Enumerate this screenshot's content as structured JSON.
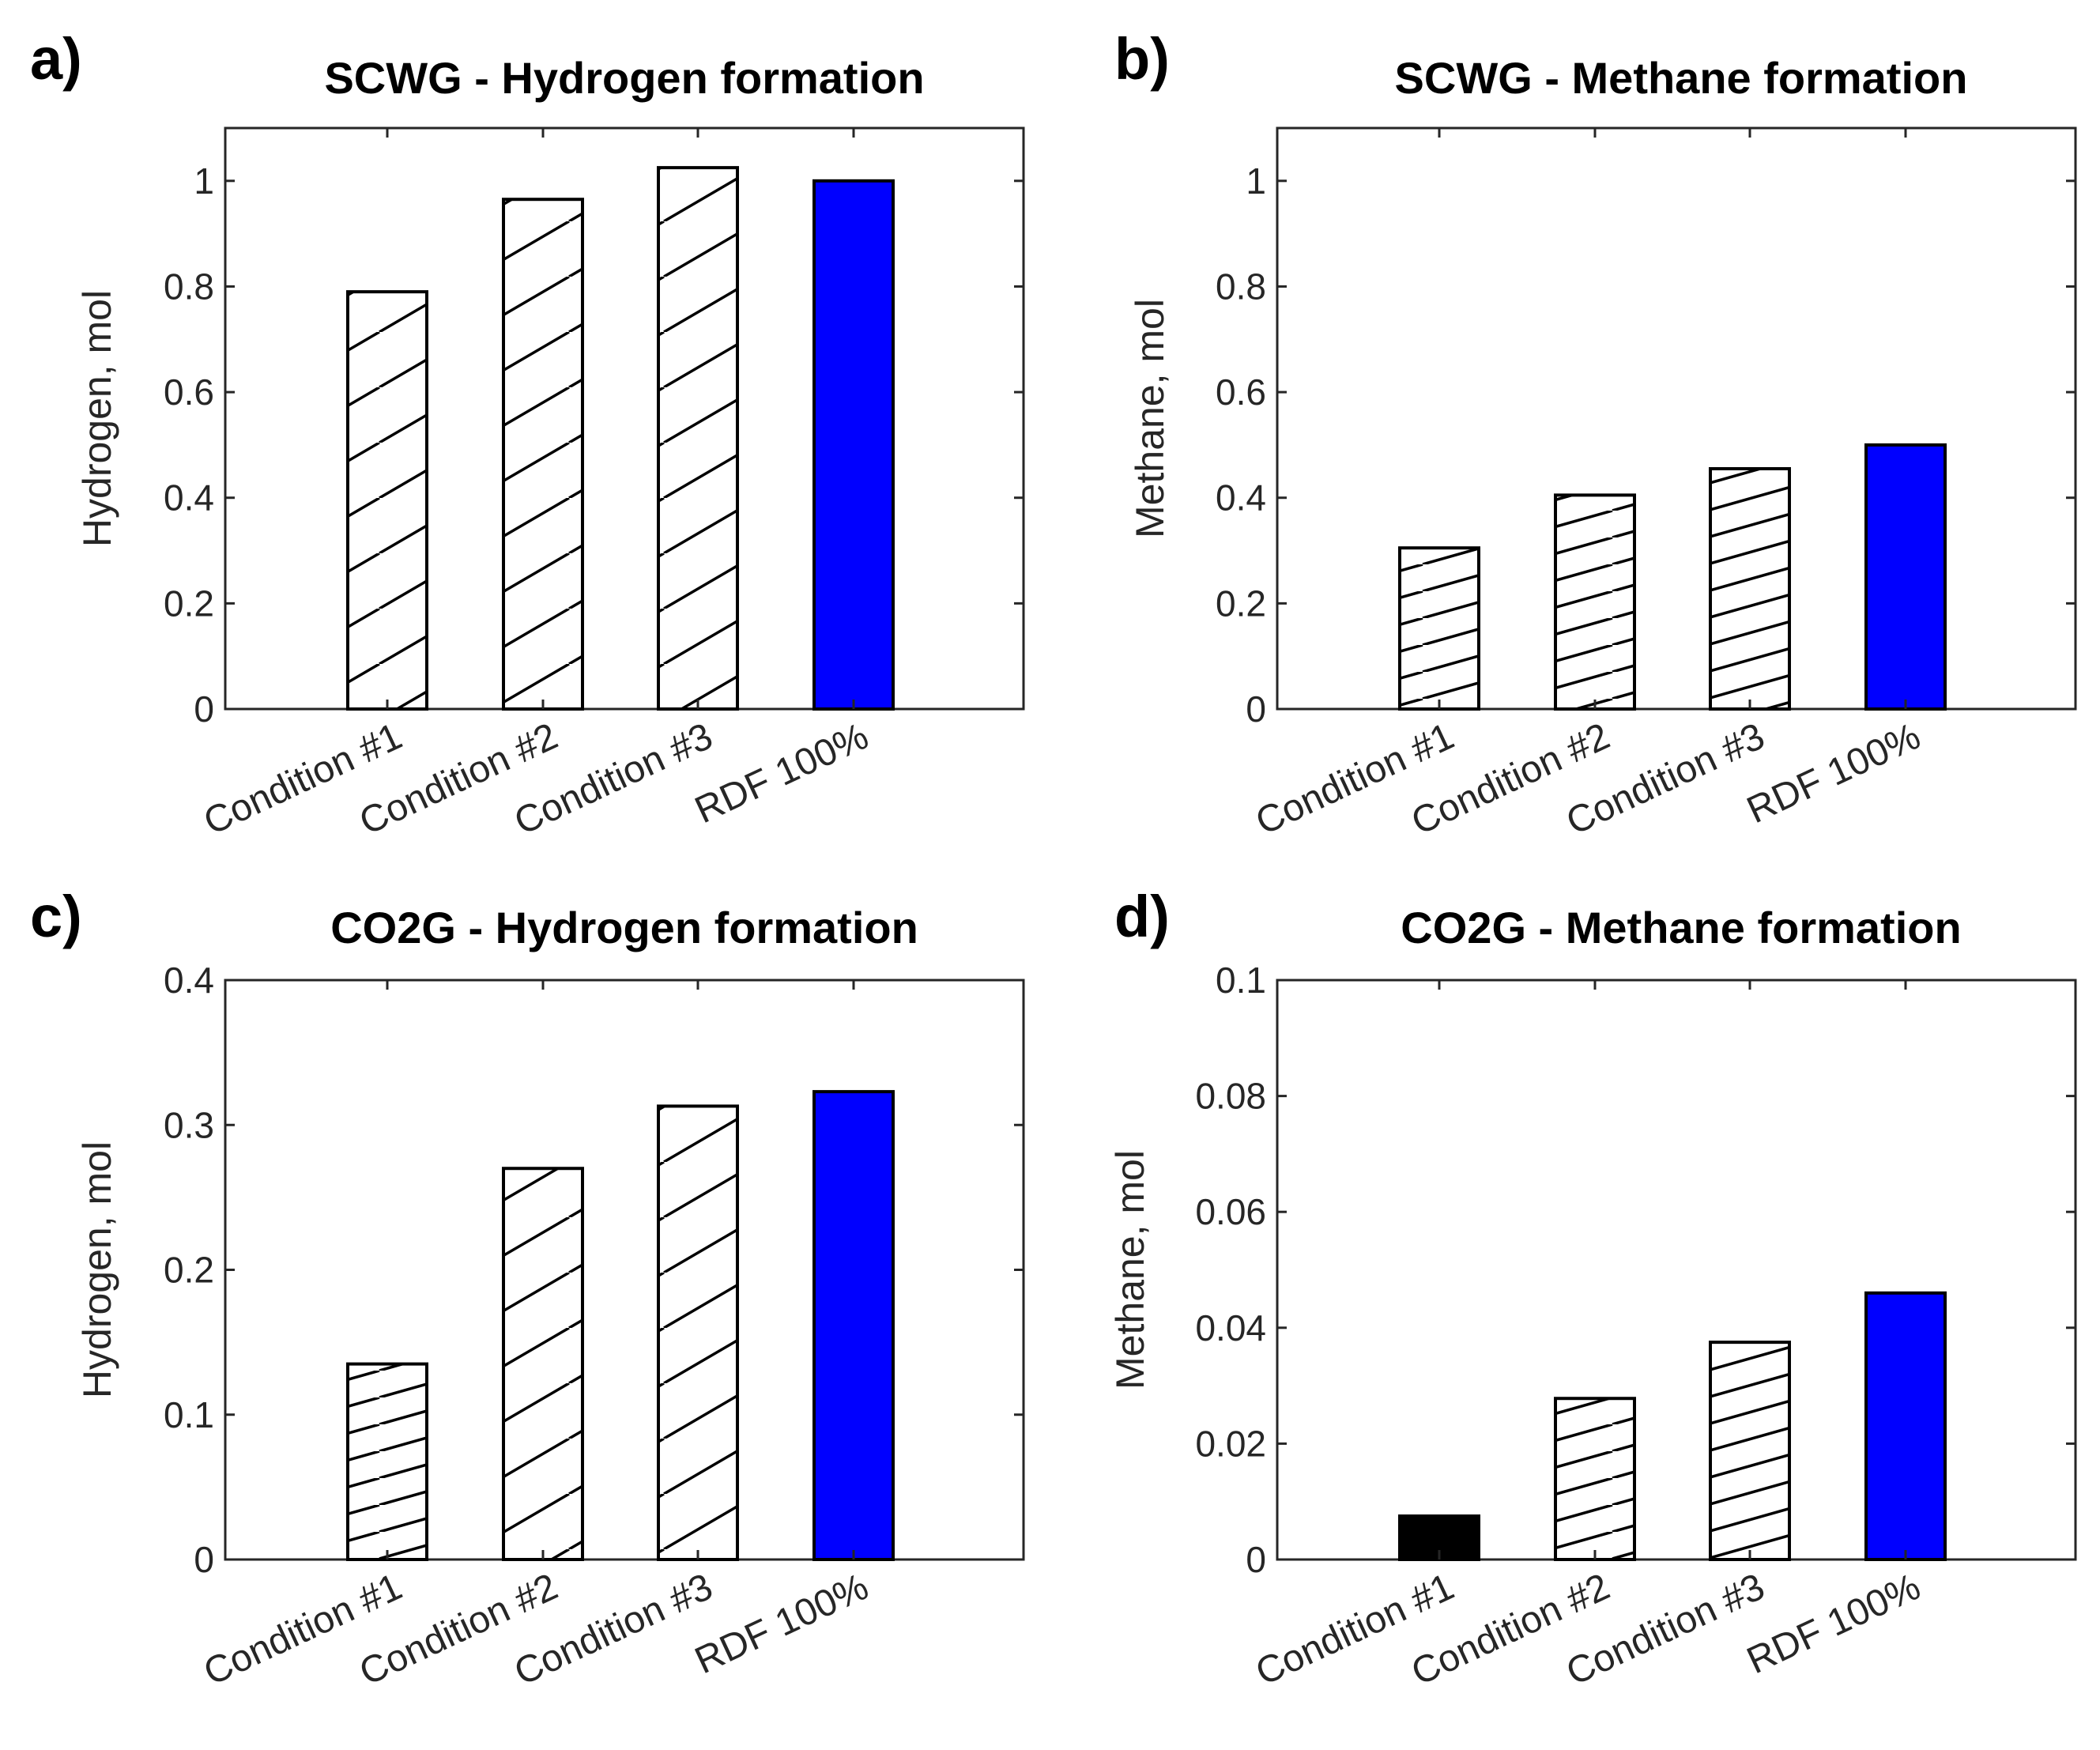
{
  "chart_data": [
    {
      "panel": "a)",
      "type": "bar",
      "title": "SCWG - Hydrogen formation",
      "ylabel": "Hydrogen, mol",
      "xlabel": "",
      "ylim": [
        0,
        1.1
      ],
      "yticks": [
        "0",
        "0.2",
        "0.4",
        "0.6",
        "0.8",
        "1"
      ],
      "ytick_values": [
        0,
        0.2,
        0.4,
        0.6,
        0.8,
        1.0
      ],
      "categories": [
        "Condition #1",
        "Condition #2",
        "Condition #3",
        "RDF 100%"
      ],
      "values": [
        0.79,
        0.965,
        1.025,
        1.0
      ],
      "fills": [
        "hatch-steep",
        "hatch-steep",
        "hatch-steep",
        "#0000ff"
      ],
      "grid": false
    },
    {
      "panel": "b)",
      "type": "bar",
      "title": "SCWG - Methane formation",
      "ylabel": "Methane, mol",
      "xlabel": "",
      "ylim": [
        0,
        1.1
      ],
      "yticks": [
        "0",
        "0.2",
        "0.4",
        "0.6",
        "0.8",
        "1"
      ],
      "ytick_values": [
        0,
        0.2,
        0.4,
        0.6,
        0.8,
        1.0
      ],
      "categories": [
        "Condition #1",
        "Condition #2",
        "Condition #3",
        "RDF 100%"
      ],
      "values": [
        0.305,
        0.405,
        0.455,
        0.5
      ],
      "fills": [
        "hatch-shallow",
        "hatch-shallow",
        "hatch-shallow",
        "#0000ff"
      ],
      "grid": false
    },
    {
      "panel": "c)",
      "type": "bar",
      "title": "CO2G - Hydrogen formation",
      "ylabel": "Hydrogen, mol",
      "xlabel": "",
      "ylim": [
        0,
        0.4
      ],
      "yticks": [
        "0",
        "0.1",
        "0.2",
        "0.3",
        "0.4"
      ],
      "ytick_values": [
        0,
        0.1,
        0.2,
        0.3,
        0.4
      ],
      "categories": [
        "Condition #1",
        "Condition #2",
        "Condition #3",
        "RDF 100%"
      ],
      "values": [
        0.135,
        0.27,
        0.313,
        0.323
      ],
      "fills": [
        "hatch-shallow",
        "hatch-steep",
        "hatch-steep",
        "#0000ff"
      ],
      "grid": false
    },
    {
      "panel": "d)",
      "type": "bar",
      "title": "CO2G - Methane formation",
      "ylabel": "Methane, mol",
      "xlabel": "",
      "ylim": [
        0,
        0.1
      ],
      "yticks": [
        "0",
        "0.02",
        "0.04",
        "0.06",
        "0.08",
        "0.1"
      ],
      "ytick_values": [
        0,
        0.02,
        0.04,
        0.06,
        0.08,
        0.1
      ],
      "categories": [
        "Condition #1",
        "Condition #2",
        "Condition #3",
        "RDF 100%"
      ],
      "values": [
        0.0075,
        0.0278,
        0.0375,
        0.046
      ],
      "fills": [
        "#000000",
        "hatch-shallow",
        "hatch-shallow",
        "#0000ff"
      ],
      "grid": false
    }
  ]
}
